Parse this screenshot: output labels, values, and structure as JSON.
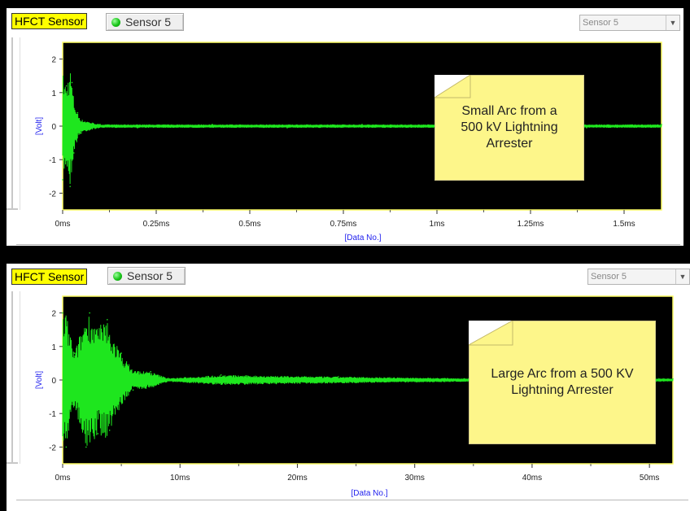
{
  "panels": [
    {
      "header": {
        "sensor_tag": "HFCT Sensor",
        "sensor_button": "Sensor 5",
        "dropdown_value": "Sensor 5"
      },
      "annotation": [
        "Small Arc from a",
        "500 kV Lightning",
        "Arrester"
      ]
    },
    {
      "header": {
        "sensor_tag": "HFCT Sensor",
        "sensor_button": "Sensor 5",
        "dropdown_value": "Sensor 5"
      },
      "annotation": [
        "Large Arc from a 500 KV",
        "Lightning Arrester"
      ]
    }
  ],
  "colors": {
    "trace": "#1ee61e",
    "plot_bg": "#000000",
    "plot_border": "#ffff66",
    "axis_title": "#2222ee",
    "sensor_tag_bg": "#ffff00",
    "note_bg": "#fdf68a",
    "status_dot": "#18c418"
  },
  "icons": {
    "status": "green-status-dot-icon",
    "dropdown": "chevron-down-icon"
  },
  "chart_data": [
    {
      "type": "line",
      "title": "",
      "xlabel": "[Data No.]",
      "ylabel": "[Volt]",
      "x_ticks": [
        "0ms",
        "0.25ms",
        "0.5ms",
        "0.75ms",
        "1ms",
        "1.25ms",
        "1.5ms"
      ],
      "y_ticks": [
        "2",
        "1",
        "0",
        "-1",
        "-2"
      ],
      "xlim": [
        0,
        1.6
      ],
      "ylim": [
        -2.5,
        2.5
      ],
      "x_unit": "ms",
      "series": [
        {
          "x": [
            0,
            0.01,
            0.02,
            0.025,
            0.03,
            0.04,
            0.05,
            0.1,
            0.2,
            0.4,
            0.6,
            0.8,
            1.0,
            1.2,
            1.4,
            1.6
          ],
          "y": [
            -1.6,
            1.2,
            -1.8,
            1.3,
            -0.8,
            0.4,
            -0.2,
            0.05,
            -0.05,
            0.05,
            -0.05,
            0.05,
            -0.05,
            0.05,
            -0.05,
            0.05
          ]
        }
      ]
    },
    {
      "type": "line",
      "title": "",
      "xlabel": "[Data No.]",
      "ylabel": "[Volt]",
      "x_ticks": [
        "0ms",
        "10ms",
        "20ms",
        "30ms",
        "40ms",
        "50ms"
      ],
      "y_ticks": [
        "2",
        "1",
        "0",
        "-1",
        "-2"
      ],
      "xlim": [
        0,
        52
      ],
      "ylim": [
        -2.5,
        2.5
      ],
      "x_unit": "ms",
      "series": [
        {
          "x": [
            0,
            0.3,
            1,
            2,
            2.3,
            3,
            3.8,
            4,
            5,
            6,
            7.5,
            9,
            13.5,
            23.5,
            35,
            45,
            52
          ],
          "y": [
            2,
            -2,
            0.8,
            -2,
            2,
            -1.6,
            1.8,
            -1.5,
            0.8,
            -0.3,
            0.25,
            0.05,
            0.15,
            0.1,
            0.05,
            0.03,
            0.03
          ]
        }
      ]
    }
  ]
}
